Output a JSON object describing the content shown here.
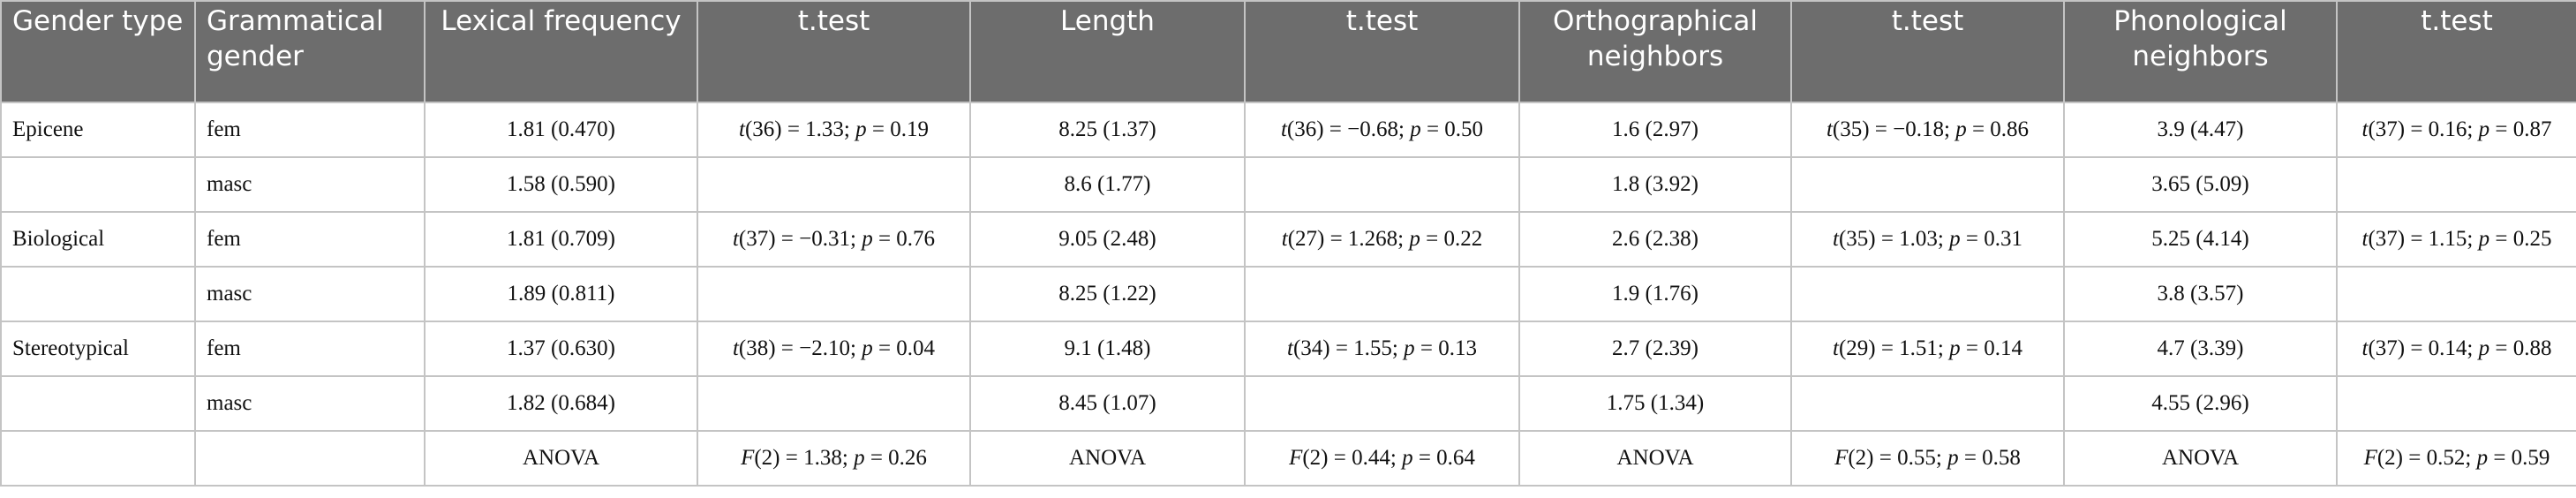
{
  "table": {
    "header": [
      "Gender type",
      "Grammatical gender",
      "Lexical frequency",
      "t.test",
      "Length",
      "t.test",
      "Orthographical neighbors",
      "t.test",
      "Phonological neighbors",
      "t.test"
    ],
    "rows": [
      [
        "Epicene",
        "fem",
        "1.81 (0.470)",
        "t(36) = 1.33; p = 0.19",
        "8.25 (1.37)",
        "t(36) = −0.68; p = 0.50",
        "1.6 (2.97)",
        "t(35) = −0.18; p = 0.86",
        "3.9 (4.47)",
        "t(37) = 0.16; p = 0.87"
      ],
      [
        null,
        "masc",
        "1.58 (0.590)",
        null,
        "8.6 (1.77)",
        null,
        "1.8 (3.92)",
        null,
        "3.65 (5.09)",
        null
      ],
      [
        "Biological",
        "fem",
        "1.81 (0.709)",
        "t(37) = −0.31; p = 0.76",
        "9.05 (2.48)",
        "t(27) = 1.268; p = 0.22",
        "2.6 (2.38)",
        "t(35) = 1.03; p = 0.31",
        "5.25 (4.14)",
        "t(37) = 1.15; p = 0.25"
      ],
      [
        null,
        "masc",
        "1.89 (0.811)",
        null,
        "8.25 (1.22)",
        null,
        "1.9 (1.76)",
        null,
        "3.8 (3.57)",
        null
      ],
      [
        "Stereotypical",
        "fem",
        "1.37 (0.630)",
        "t(38) = −2.10; p = 0.04",
        "9.1 (1.48)",
        "t(34) = 1.55; p = 0.13",
        "2.7 (2.39)",
        "t(29) = 1.51; p = 0.14",
        "4.7 (3.39)",
        "t(37) = 0.14; p = 0.88"
      ],
      [
        null,
        "masc",
        "1.82 (0.684)",
        null,
        "8.45 (1.07)",
        null,
        "1.75 (1.34)",
        null,
        "4.55 (2.96)",
        null
      ],
      [
        null,
        null,
        "ANOVA",
        "F(2) = 1.38; p = 0.26",
        "ANOVA",
        "F(2) = 0.44; p = 0.64",
        "ANOVA",
        "F(2) = 0.55; p = 0.58",
        "ANOVA",
        "F(2) = 0.52; p = 0.59"
      ]
    ]
  }
}
